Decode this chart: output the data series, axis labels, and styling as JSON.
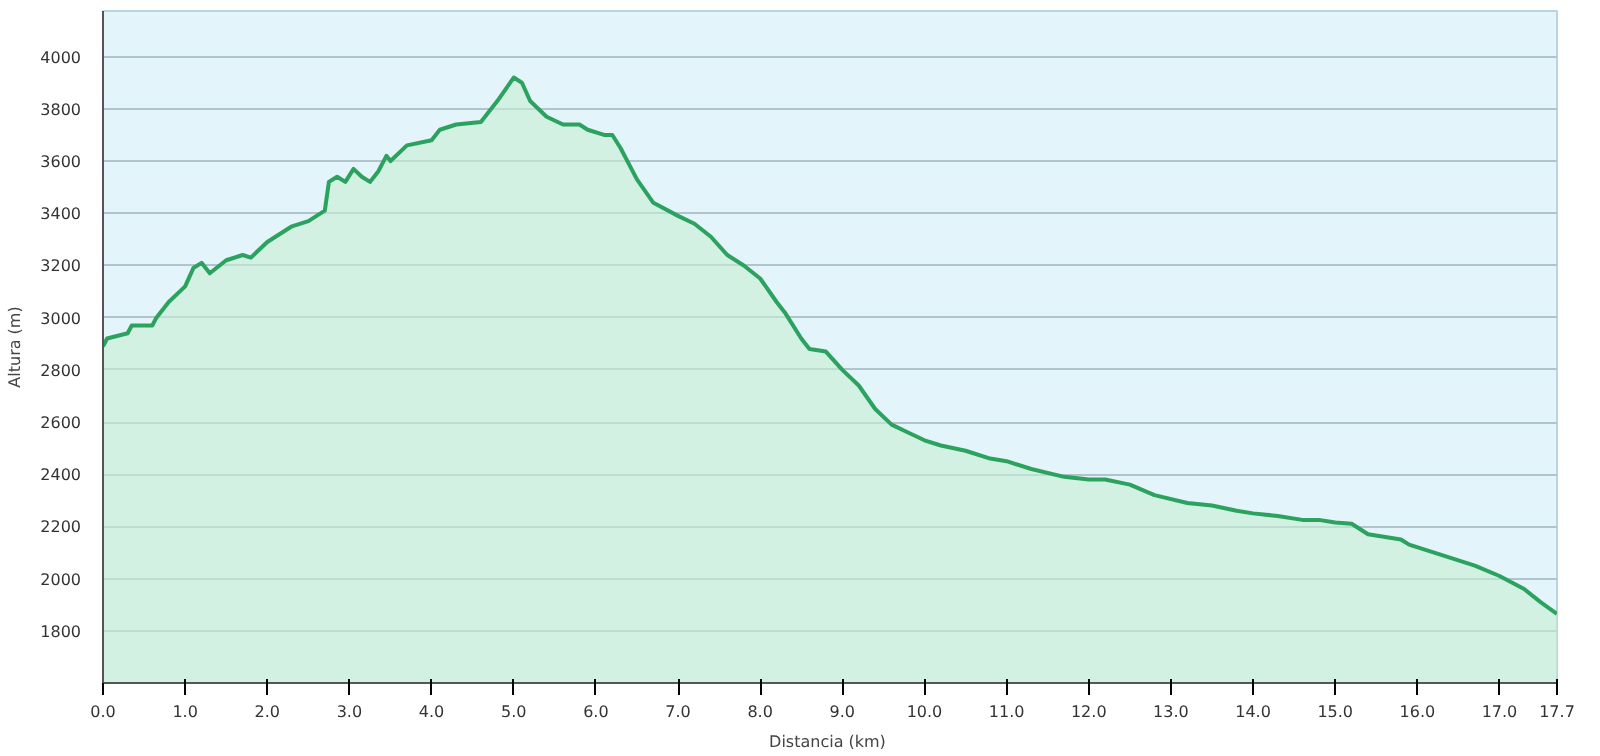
{
  "chart_data": {
    "type": "area",
    "xlabel": "Distancia  (km)",
    "ylabel": "Altura (m)",
    "x": [
      0,
      0.05,
      0.3,
      0.35,
      0.6,
      0.65,
      0.8,
      1.0,
      1.1,
      1.2,
      1.3,
      1.5,
      1.7,
      1.8,
      2.0,
      2.3,
      2.5,
      2.7,
      2.75,
      2.85,
      2.95,
      3.05,
      3.15,
      3.25,
      3.35,
      3.45,
      3.5,
      3.7,
      4.0,
      4.1,
      4.3,
      4.6,
      4.8,
      5.0,
      5.1,
      5.2,
      5.4,
      5.6,
      5.8,
      5.9,
      6.1,
      6.2,
      6.3,
      6.5,
      6.7,
      7.0,
      7.2,
      7.4,
      7.6,
      7.8,
      8.0,
      8.2,
      8.3,
      8.5,
      8.6,
      8.8,
      9.0,
      9.2,
      9.4,
      9.6,
      9.8,
      10.0,
      10.2,
      10.5,
      10.8,
      11.0,
      11.3,
      11.7,
      12.0,
      12.2,
      12.5,
      12.8,
      13.2,
      13.5,
      13.8,
      14.0,
      14.3,
      14.6,
      14.8,
      15.0,
      15.2,
      15.4,
      15.8,
      15.9,
      16.1,
      16.5,
      16.7,
      17.0,
      17.3,
      17.5,
      17.7
    ],
    "series": [
      {
        "color": "#2ca25f",
        "values": [
          2890,
          2920,
          2940,
          2970,
          2970,
          3000,
          3060,
          3120,
          3190,
          3210,
          3170,
          3220,
          3240,
          3230,
          3290,
          3350,
          3370,
          3410,
          3520,
          3540,
          3520,
          3570,
          3540,
          3520,
          3560,
          3620,
          3600,
          3660,
          3680,
          3720,
          3740,
          3750,
          3830,
          3920,
          3900,
          3830,
          3770,
          3740,
          3740,
          3720,
          3700,
          3700,
          3650,
          3530,
          3440,
          3390,
          3360,
          3310,
          3240,
          3200,
          3150,
          3060,
          3020,
          2920,
          2880,
          2870,
          2800,
          2740,
          2650,
          2590,
          2560,
          2530,
          2510,
          2490,
          2460,
          2450,
          2420,
          2390,
          2380,
          2380,
          2360,
          2320,
          2290,
          2280,
          2260,
          2250,
          2240,
          2225,
          2225,
          2215,
          2210,
          2170,
          2150,
          2130,
          2110,
          2070,
          2050,
          2010,
          1960,
          1910,
          1865
        ]
      }
    ],
    "xlim": [
      0,
      17.7
    ],
    "ylim": [
      1600,
      4175
    ],
    "xticks": [
      {
        "value": 0,
        "label": "0.0"
      },
      {
        "value": 1,
        "label": "1.0"
      },
      {
        "value": 2,
        "label": "2.0"
      },
      {
        "value": 3,
        "label": "3.0"
      },
      {
        "value": 4,
        "label": "4.0"
      },
      {
        "value": 5,
        "label": "5.0"
      },
      {
        "value": 6,
        "label": "6.0"
      },
      {
        "value": 7,
        "label": "7.0"
      },
      {
        "value": 8,
        "label": "8.0"
      },
      {
        "value": 9,
        "label": "9.0"
      },
      {
        "value": 10,
        "label": "10.0"
      },
      {
        "value": 11,
        "label": "11.0"
      },
      {
        "value": 12,
        "label": "12.0"
      },
      {
        "value": 13,
        "label": "13.0"
      },
      {
        "value": 14,
        "label": "14.0"
      },
      {
        "value": 15,
        "label": "15.0"
      },
      {
        "value": 16,
        "label": "16.0"
      },
      {
        "value": 17,
        "label": "17.0"
      },
      {
        "value": 17.7,
        "label": "17.7"
      }
    ],
    "yticks": [
      1800,
      2000,
      2200,
      2400,
      2600,
      2800,
      3000,
      3200,
      3400,
      3600,
      3800,
      4000
    ],
    "grid": "y"
  }
}
